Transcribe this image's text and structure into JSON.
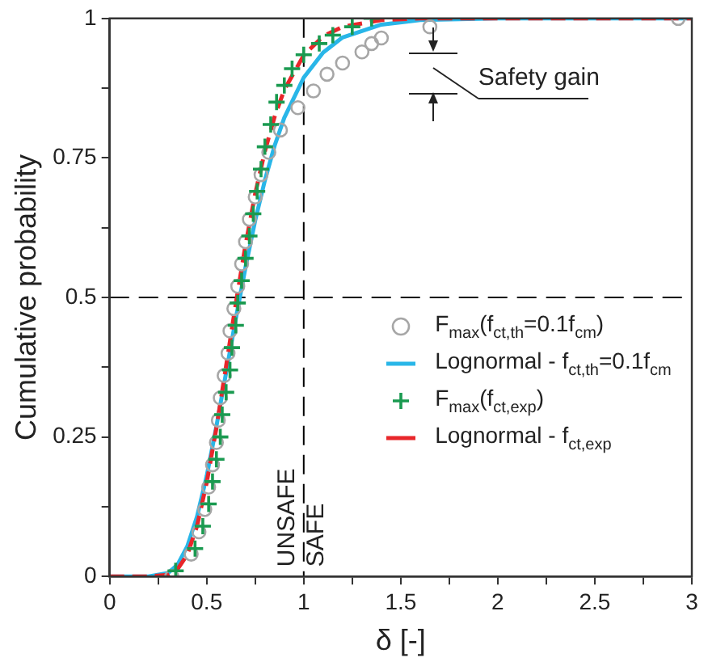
{
  "chart_data": {
    "type": "line",
    "xlabel": "δ [-]",
    "ylabel": "Cumulative probability",
    "xlim": [
      0,
      3
    ],
    "ylim": [
      0,
      1
    ],
    "xticks": [
      0,
      {
        "value": 0.25,
        "label": null
      },
      0.5,
      {
        "value": 0.75,
        "label": null
      },
      1,
      {
        "value": 1.25,
        "label": null
      },
      1.5,
      {
        "value": 1.75,
        "label": null
      },
      2,
      {
        "value": 2.25,
        "label": null
      },
      2.5,
      {
        "value": 2.75,
        "label": null
      },
      3
    ],
    "yticks": [
      0,
      {
        "value": 0.125,
        "label": null
      },
      0.25,
      {
        "value": 0.375,
        "label": null
      },
      0.5,
      {
        "value": 0.625,
        "label": null
      },
      0.75,
      {
        "value": 0.875,
        "label": null
      },
      1
    ],
    "grid": false,
    "legend": "right",
    "series": [
      {
        "name": "F$_{max}$(f$_{ct,th}$=0.1f$_{cm}$)",
        "type": "scatter",
        "marker": "circle",
        "color": "#a6a6a6",
        "x": [
          0.32,
          0.42,
          0.46,
          0.49,
          0.51,
          0.53,
          0.55,
          0.56,
          0.57,
          0.59,
          0.61,
          0.62,
          0.64,
          0.66,
          0.68,
          0.7,
          0.72,
          0.75,
          0.78,
          0.82,
          0.88,
          0.97,
          1.05,
          1.12,
          1.2,
          1.3,
          1.35,
          1.4,
          1.65,
          2.93
        ],
        "values": [
          0,
          0.04,
          0.08,
          0.12,
          0.16,
          0.2,
          0.24,
          0.28,
          0.32,
          0.36,
          0.4,
          0.44,
          0.48,
          0.52,
          0.56,
          0.6,
          0.64,
          0.68,
          0.72,
          0.76,
          0.8,
          0.84,
          0.87,
          0.9,
          0.92,
          0.94,
          0.955,
          0.965,
          0.985,
          1
        ]
      },
      {
        "name": "Lognormal - f$_{ct,th}$=0.1f$_{cm}$",
        "line_style": "solid",
        "color": "#29b6e8",
        "x": [
          0,
          0.2,
          0.3,
          0.35,
          0.4,
          0.45,
          0.5,
          0.55,
          0.6,
          0.65,
          0.7,
          0.75,
          0.8,
          0.85,
          0.9,
          1,
          1.1,
          1.2,
          1.4,
          1.6,
          2,
          2.5,
          3
        ],
        "values": [
          0,
          0,
          0.006,
          0.021,
          0.054,
          0.107,
          0.18,
          0.269,
          0.365,
          0.462,
          0.554,
          0.638,
          0.71,
          0.772,
          0.822,
          0.894,
          0.939,
          0.966,
          0.989,
          0.997,
          1,
          1,
          1
        ]
      },
      {
        "name": "F$_{max}$(f$_{ct,exp}$)",
        "type": "scatter",
        "marker": "cross",
        "color": "#1a9a50",
        "x": [
          0.34,
          0.44,
          0.48,
          0.51,
          0.53,
          0.55,
          0.57,
          0.58,
          0.6,
          0.62,
          0.63,
          0.65,
          0.66,
          0.68,
          0.7,
          0.72,
          0.74,
          0.76,
          0.78,
          0.8,
          0.83,
          0.86,
          0.9,
          0.94,
          1,
          1.08,
          1.15,
          1.25,
          1.35
        ],
        "values": [
          0.01,
          0.05,
          0.09,
          0.13,
          0.17,
          0.21,
          0.25,
          0.29,
          0.33,
          0.37,
          0.41,
          0.45,
          0.49,
          0.53,
          0.57,
          0.61,
          0.65,
          0.69,
          0.73,
          0.77,
          0.81,
          0.85,
          0.88,
          0.91,
          0.935,
          0.955,
          0.97,
          0.985,
          1
        ]
      },
      {
        "name": "Lognormal - f$_{ct,exp}$",
        "line_style": "dashed",
        "color": "#e8262a",
        "x": [
          0,
          0.2,
          0.3,
          0.35,
          0.4,
          0.45,
          0.5,
          0.55,
          0.6,
          0.65,
          0.7,
          0.75,
          0.8,
          0.85,
          0.9,
          1,
          1.1,
          1.2,
          1.4,
          1.6,
          2,
          2.5,
          3
        ],
        "values": [
          0,
          0,
          0.003,
          0.013,
          0.039,
          0.09,
          0.168,
          0.266,
          0.377,
          0.489,
          0.594,
          0.686,
          0.762,
          0.824,
          0.872,
          0.934,
          0.968,
          0.985,
          0.997,
          1,
          1,
          1,
          1
        ]
      }
    ],
    "ref_lines": [
      {
        "axis": "x",
        "value": 1,
        "line_style": "dashed",
        "color": "#000000"
      },
      {
        "axis": "y",
        "value": 0.5,
        "line_style": "dashed",
        "color": "#000000"
      }
    ],
    "annotations": [
      "UNSAFE",
      "SAFE",
      {
        "text": "Safety gain",
        "x": 1.65,
        "y": 0.985
      }
    ]
  }
}
